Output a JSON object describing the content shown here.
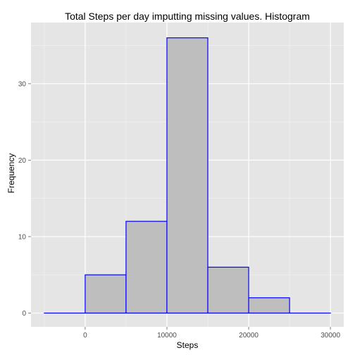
{
  "chart_data": {
    "type": "bar",
    "title": "Total Steps per day imputting missing values. Histogram",
    "xlabel": "Steps",
    "ylabel": "Frequency",
    "bins": [
      {
        "start": -5000,
        "end": 0,
        "count": 0
      },
      {
        "start": 0,
        "end": 5000,
        "count": 5
      },
      {
        "start": 5000,
        "end": 10000,
        "count": 12
      },
      {
        "start": 10000,
        "end": 15000,
        "count": 36
      },
      {
        "start": 15000,
        "end": 20000,
        "count": 6
      },
      {
        "start": 20000,
        "end": 25000,
        "count": 2
      },
      {
        "start": 25000,
        "end": 30000,
        "count": 0
      }
    ],
    "xlim": [
      -6625,
      31625
    ],
    "ylim": [
      -1.8,
      38
    ],
    "x_ticks": [
      0,
      10000,
      20000,
      30000
    ],
    "x_tick_labels": [
      "0",
      "10000",
      "20000",
      "30000"
    ],
    "y_ticks": [
      0,
      10,
      20,
      30
    ],
    "y_tick_labels": [
      "0",
      "10",
      "20",
      "30"
    ],
    "grid": true,
    "colors": {
      "panel_background": "#e5e5e5",
      "grid_major": "#ffffff",
      "grid_minor": "#f2f2f2",
      "bar_fill": "#bebebe",
      "bar_outline": "#0000ff"
    }
  }
}
